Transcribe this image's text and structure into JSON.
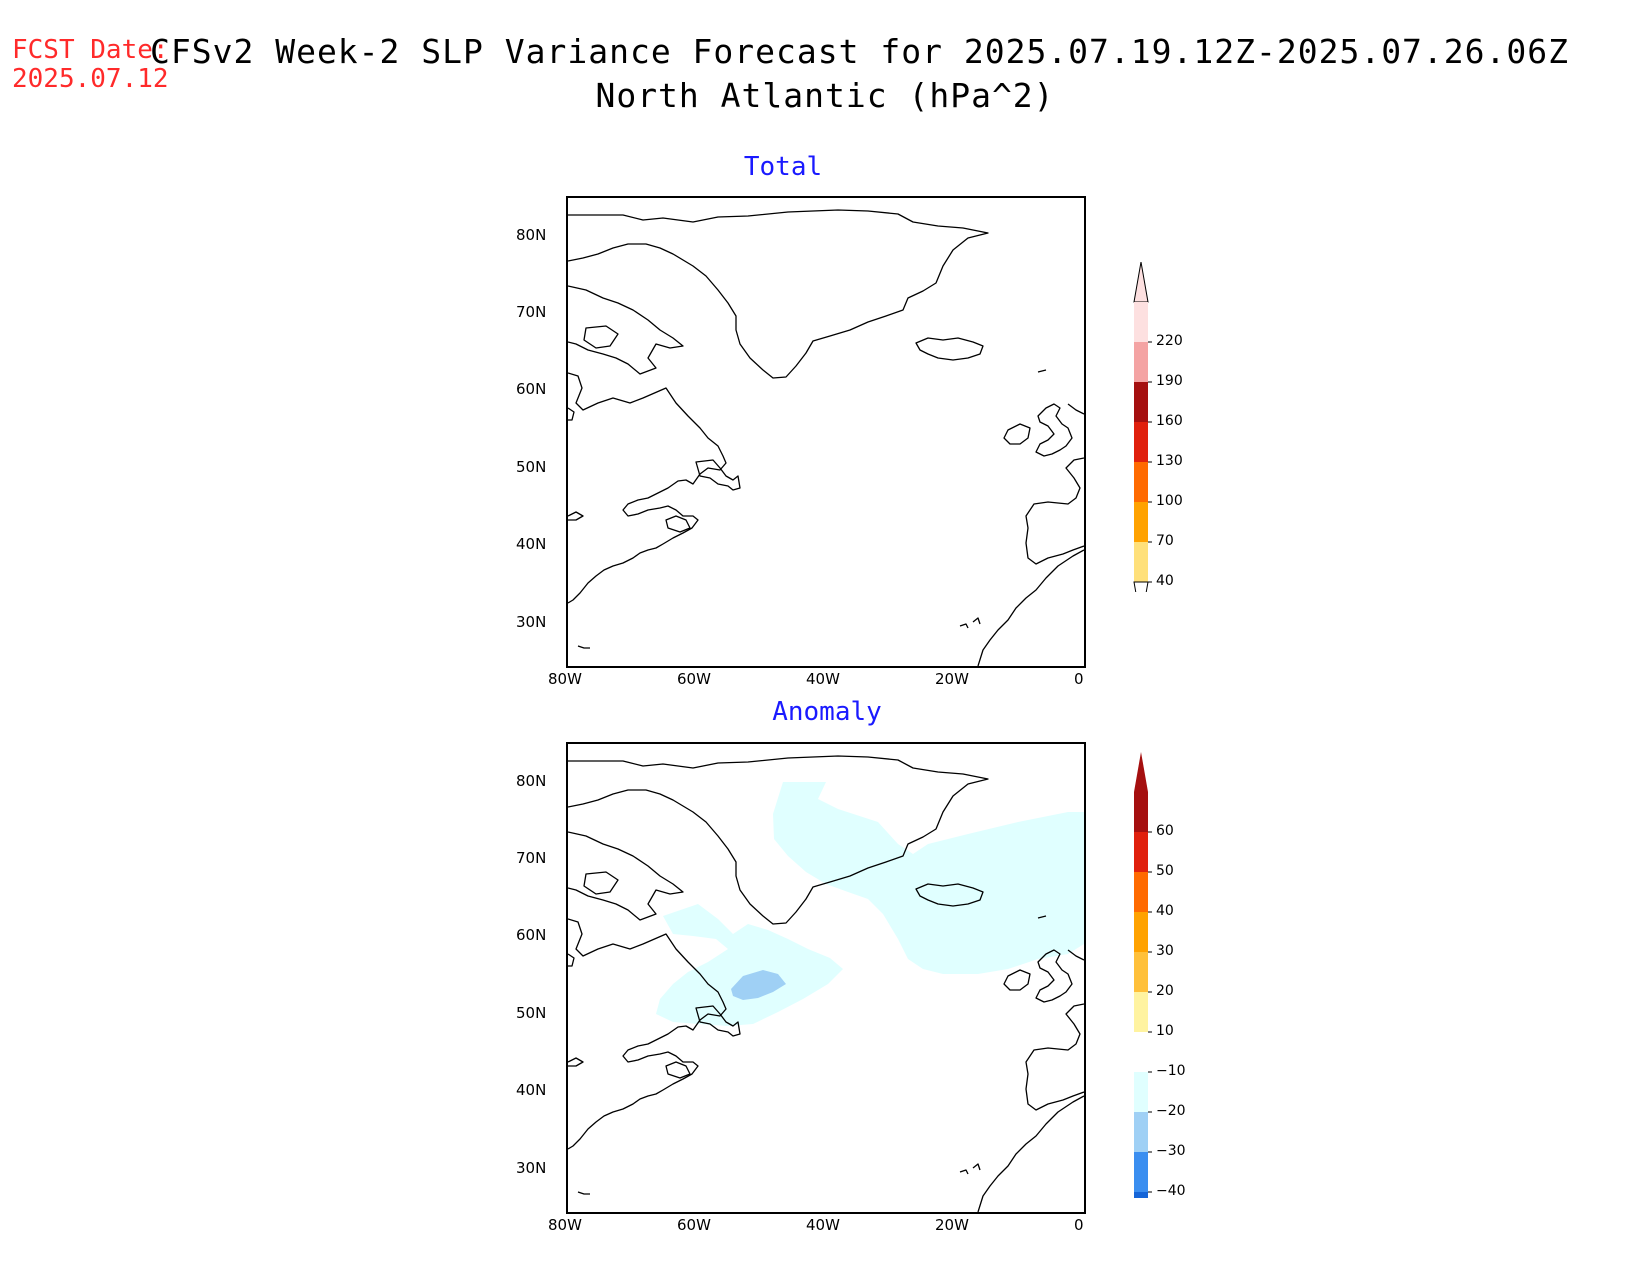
{
  "header": {
    "fcst_label": "FCST Date:",
    "fcst_date": "2025.07.12",
    "title_line1": "CFSv2 Week-2 SLP Variance Forecast for 2025.07.19.12Z-2025.07.26.06Z",
    "title_line2": "North Atlantic (hPa^2)"
  },
  "map_extent": {
    "lon": [
      -80,
      0
    ],
    "lat": [
      25,
      85
    ]
  },
  "axes": {
    "lat_ticks": [
      "80N",
      "70N",
      "60N",
      "50N",
      "40N",
      "30N"
    ],
    "lat_values": [
      80,
      70,
      60,
      50,
      40,
      30
    ],
    "lon_ticks": [
      "80W",
      "60W",
      "40W",
      "20W",
      "0"
    ],
    "lon_values": [
      -80,
      -60,
      -40,
      -20,
      0
    ]
  },
  "panels": {
    "total": {
      "title": "Total",
      "colorbar": {
        "labels": [
          "220",
          "190",
          "160",
          "130",
          "100",
          "70",
          "40"
        ],
        "colors_top_to_bottom": [
          "#fde0e0",
          "#f4a3a3",
          "#a50f0f",
          "#e0200d",
          "#ff6a00",
          "#ffa200",
          "#ffe07a"
        ]
      }
    },
    "anomaly": {
      "title": "Anomaly",
      "colorbar": {
        "labels": [
          "60",
          "50",
          "40",
          "30",
          "20",
          "10",
          "−10",
          "−20",
          "−30",
          "−40"
        ],
        "colors_top_to_bottom": [
          "#a50f0f",
          "#e0200d",
          "#ff6a00",
          "#ffa200",
          "#ffc03a",
          "#fff3a0",
          "#ffffff",
          "#e0ffff",
          "#9fd0f5",
          "#3a8ef0",
          "#1565d8"
        ]
      },
      "shading": [
        {
          "level": "-10 to -20",
          "color": "#e0ffff"
        },
        {
          "level": "-20 to -30",
          "color": "#9fd0f5"
        }
      ]
    }
  }
}
